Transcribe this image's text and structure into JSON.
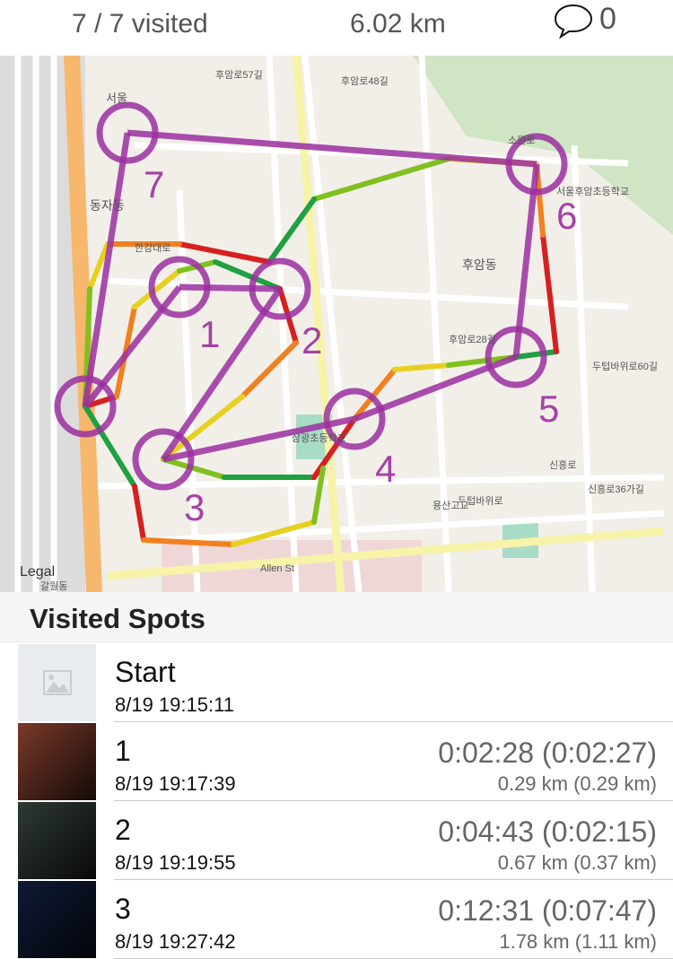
{
  "header": {
    "visited": "7 / 7 visited",
    "distance": "6.02 km",
    "comment_count": "0",
    "comment_icon": "speech-bubble-icon"
  },
  "map": {
    "attribution": "Legal",
    "labels": [
      "후암로57길",
      "후암로48길",
      "후암동",
      "동자동",
      "서울",
      "한강대로",
      "소월로",
      "서울후암초등학교",
      "용산고교",
      "두텁바위로",
      "신흥로",
      "Allen St",
      "갈월동",
      "후암로28길",
      "두텁바위로60길",
      "신흥로36가길",
      "삼광초등학교"
    ],
    "route_color": "#9b2fa0",
    "spots": [
      {
        "label": "1"
      },
      {
        "label": "2"
      },
      {
        "label": "3"
      },
      {
        "label": "4"
      },
      {
        "label": "5"
      },
      {
        "label": "6"
      },
      {
        "label": "7"
      }
    ]
  },
  "section_title": "Visited Spots",
  "spots": [
    {
      "name": "Start",
      "time": "8/19 19:15:11",
      "elapsed": "",
      "distance": "",
      "thumb": "placeholder"
    },
    {
      "name": "1",
      "time": "8/19 19:17:39",
      "elapsed": "0:02:28 (0:02:27)",
      "distance": "0.29 km (0.29 km)",
      "thumb": "#7a3a2a"
    },
    {
      "name": "2",
      "time": "8/19 19:19:55",
      "elapsed": "0:04:43 (0:02:15)",
      "distance": "0.67 km (0.37 km)",
      "thumb": "#2f3a34"
    },
    {
      "name": "3",
      "time": "8/19 19:27:42",
      "elapsed": "0:12:31 (0:07:47)",
      "distance": "1.78 km (1.11 km)",
      "thumb": "#101a35"
    }
  ]
}
